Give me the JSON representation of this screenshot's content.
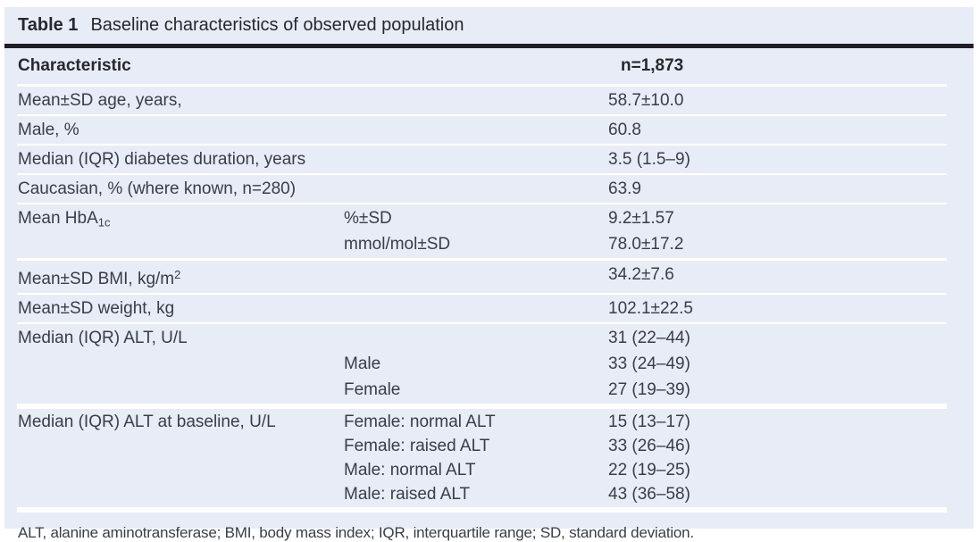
{
  "title": {
    "label": "Table 1",
    "caption": "Baseline characteristics of observed population"
  },
  "header": {
    "characteristic": "Characteristic",
    "n": "n=1,873"
  },
  "rows": [
    {
      "label": "Mean±SD age, years,",
      "value": "58.7±10.0"
    },
    {
      "label": "Male, %",
      "value": "60.8"
    },
    {
      "label": "Median (IQR) diabetes duration, years",
      "value": "3.5 (1.5–9)"
    },
    {
      "label": "Caucasian, % (where known, n=280)",
      "value": "63.9"
    },
    {
      "label_text": "Mean HbA",
      "label_subscript": "1c",
      "subs": [
        "%±SD",
        "mmol/mol±SD"
      ],
      "values": [
        "9.2±1.57",
        "78.0±17.2"
      ]
    },
    {
      "label_text": "Mean±SD BMI, kg/m",
      "label_superscript": "2",
      "value": "34.2±7.6"
    },
    {
      "label": "Mean±SD weight, kg",
      "value": "102.1±22.5"
    },
    {
      "label": "Median (IQR) ALT, U/L",
      "subs": [
        "Male",
        "Female"
      ],
      "values": [
        "31 (22–44)",
        "33 (24–49)",
        "27 (19–39)"
      ]
    },
    {
      "label": "Median (IQR) ALT at baseline, U/L",
      "subs": [
        "Female: normal ALT",
        "Female: raised ALT",
        "Male: normal ALT",
        "Male: raised ALT"
      ],
      "values": [
        "15 (13–17)",
        "33 (26–46)",
        "22 (19–25)",
        "43 (36–58)"
      ]
    }
  ],
  "footnote": {
    "text": "ALT, alanine aminotransferase; BMI, body mass index; IQR, interquartile range; SD, standard deviation."
  },
  "colors": {
    "card_bg": "#e8ecf6",
    "text": "#3a3d47",
    "title_text": "#26272f",
    "dark_rule": "#211f26",
    "separator": "#ffffff"
  }
}
